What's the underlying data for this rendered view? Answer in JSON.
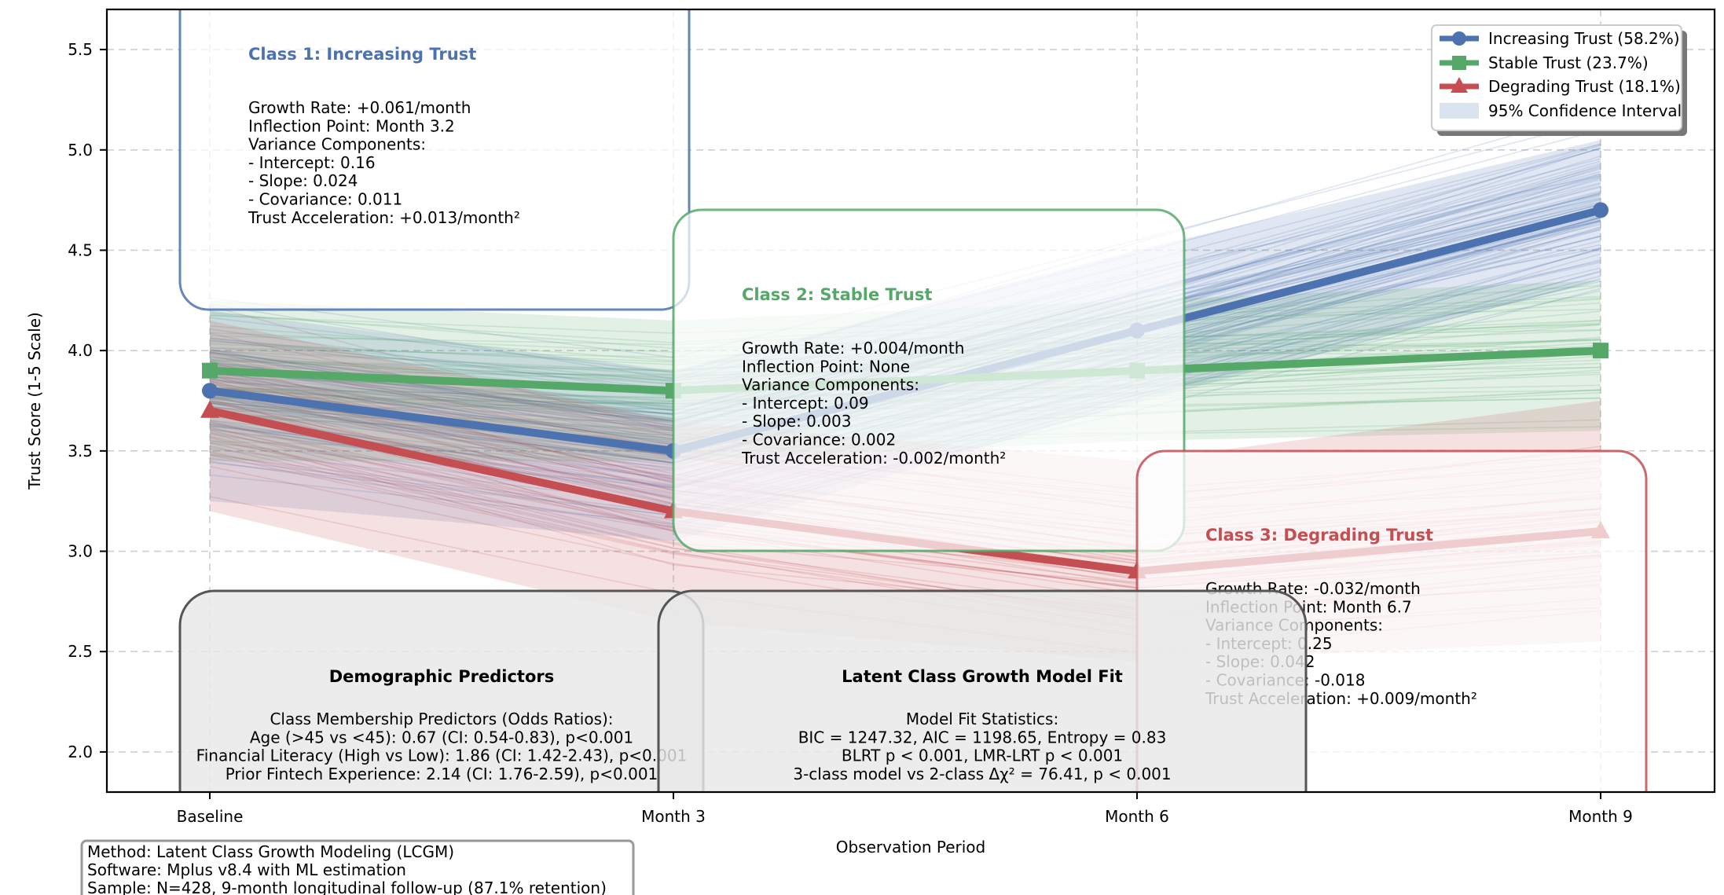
{
  "chart_data": {
    "type": "line",
    "title": "",
    "xlabel": "Observation Period",
    "ylabel": "Trust Score (1-5 Scale)",
    "categories": [
      "Baseline",
      "Month 3",
      "Month 6",
      "Month 9"
    ],
    "ylim": [
      1.8,
      5.7
    ],
    "yticks": [
      2.0,
      2.5,
      3.0,
      3.5,
      4.0,
      4.5,
      5.0,
      5.5
    ],
    "grid": true,
    "legend_position": "top-right",
    "series": [
      {
        "name": "Increasing Trust (58.2%)",
        "values": [
          3.8,
          3.5,
          4.1,
          4.7
        ],
        "color": "#4c72b0",
        "marker": "circle"
      },
      {
        "name": "Stable Trust (23.7%)",
        "values": [
          3.9,
          3.8,
          3.9,
          4.0
        ],
        "color": "#55a868",
        "marker": "square"
      },
      {
        "name": "Degrading Trust (18.1%)",
        "values": [
          3.7,
          3.2,
          2.9,
          3.1
        ],
        "color": "#c44e52",
        "marker": "triangle"
      }
    ],
    "confidence_bands": [
      {
        "series": "Increasing Trust (58.2%)",
        "lower": [
          3.25,
          3.05,
          3.75,
          4.35
        ],
        "upper": [
          4.2,
          3.9,
          4.5,
          5.05
        ]
      },
      {
        "series": "Stable Trust (23.7%)",
        "lower": [
          3.45,
          3.45,
          3.55,
          3.6
        ],
        "upper": [
          4.25,
          4.15,
          4.25,
          4.35
        ]
      },
      {
        "series": "Degrading Trust (18.1%)",
        "lower": [
          3.2,
          2.65,
          2.45,
          2.55
        ],
        "upper": [
          4.15,
          3.65,
          3.45,
          3.75
        ]
      }
    ],
    "ci_legend_label": "95% Confidence Interval",
    "annotations": [
      {
        "id": "class1",
        "title": "Class 1: Increasing Trust",
        "color": "#4c72b0",
        "lines": [
          "Growth Rate: +0.061/month",
          "Inflection Point: Month 3.2",
          "Variance Components:",
          "  - Intercept: 0.16",
          "  - Slope: 0.024",
          "  - Covariance: 0.011",
          "Trust Acceleration: +0.013/month²"
        ]
      },
      {
        "id": "class2",
        "title": "Class 2: Stable Trust",
        "color": "#55a868",
        "lines": [
          "Growth Rate: +0.004/month",
          "Inflection Point: None",
          "Variance Components:",
          "  - Intercept: 0.09",
          "  - Slope: 0.003",
          "  - Covariance: 0.002",
          "Trust Acceleration: -0.002/month²"
        ]
      },
      {
        "id": "class3",
        "title": "Class 3: Degrading Trust",
        "color": "#c44e52",
        "lines": [
          "Growth Rate: -0.032/month",
          "Inflection Point: Month 6.7",
          "Variance Components:",
          "  - Intercept: 0.25",
          "  - Slope: 0.042",
          "  - Covariance: -0.018",
          "Trust Acceleration: +0.009/month²"
        ]
      }
    ],
    "info_boxes": [
      {
        "id": "demographic",
        "title": "Demographic Predictors",
        "lines": [
          "Class Membership Predictors (Odds Ratios):",
          "Age (>45 vs <45): 0.67 (CI: 0.54-0.83), p<0.001",
          "Financial Literacy (High vs Low): 1.86 (CI: 1.42-2.43), p<0.001",
          "Prior Fintech Experience: 2.14 (CI: 1.76-2.59), p<0.001"
        ]
      },
      {
        "id": "modelfit",
        "title": "Latent Class Growth Model Fit",
        "lines": [
          "Model Fit Statistics:",
          "BIC = 1247.32, AIC = 1198.65, Entropy = 0.83",
          "BLRT p < 0.001, LMR-LRT p < 0.001",
          "3-class model vs 2-class Δχ² = 76.41, p < 0.001"
        ]
      }
    ],
    "footnote": [
      "Method: Latent Class Growth Modeling (LCGM)",
      "Software: Mplus v8.4 with ML estimation",
      "Sample: N=428, 9-month longitudinal follow-up (87.1% retention)"
    ]
  }
}
